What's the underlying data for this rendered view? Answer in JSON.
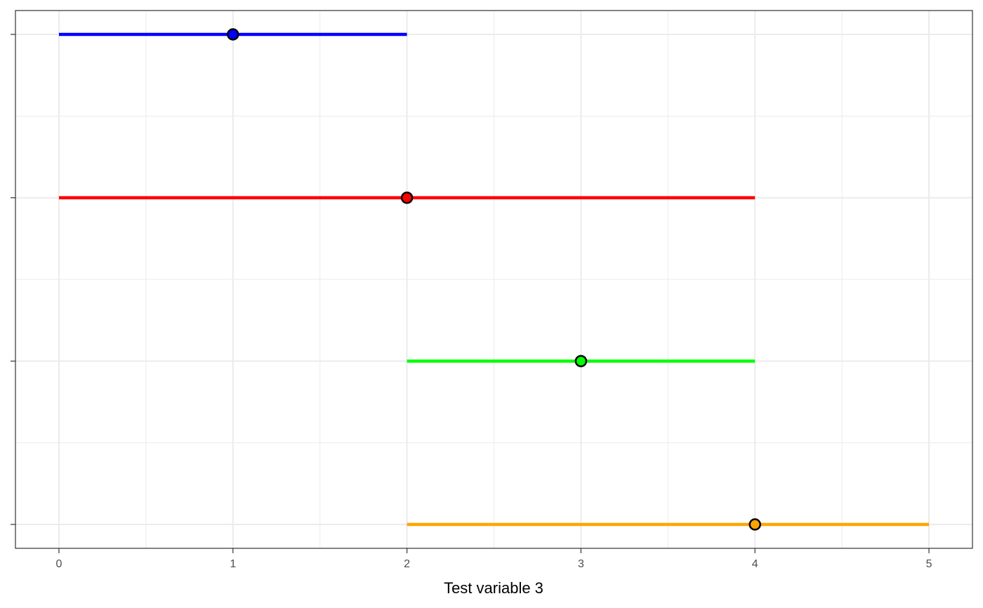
{
  "chart_data": {
    "type": "interval",
    "xlabel": "Test variable 3",
    "xlim": [
      -0.25,
      5.25
    ],
    "x_ticks": [
      0,
      1,
      2,
      3,
      4,
      5
    ],
    "grid": true,
    "rows": [
      {
        "low": 0,
        "high": 2,
        "point": 1,
        "color": "#0000FF"
      },
      {
        "low": 0,
        "high": 4,
        "point": 2,
        "color": "#FF0000"
      },
      {
        "low": 2,
        "high": 4,
        "point": 3,
        "color": "#00FF00"
      },
      {
        "low": 2,
        "high": 5,
        "point": 4,
        "color": "#FFA500"
      }
    ]
  }
}
